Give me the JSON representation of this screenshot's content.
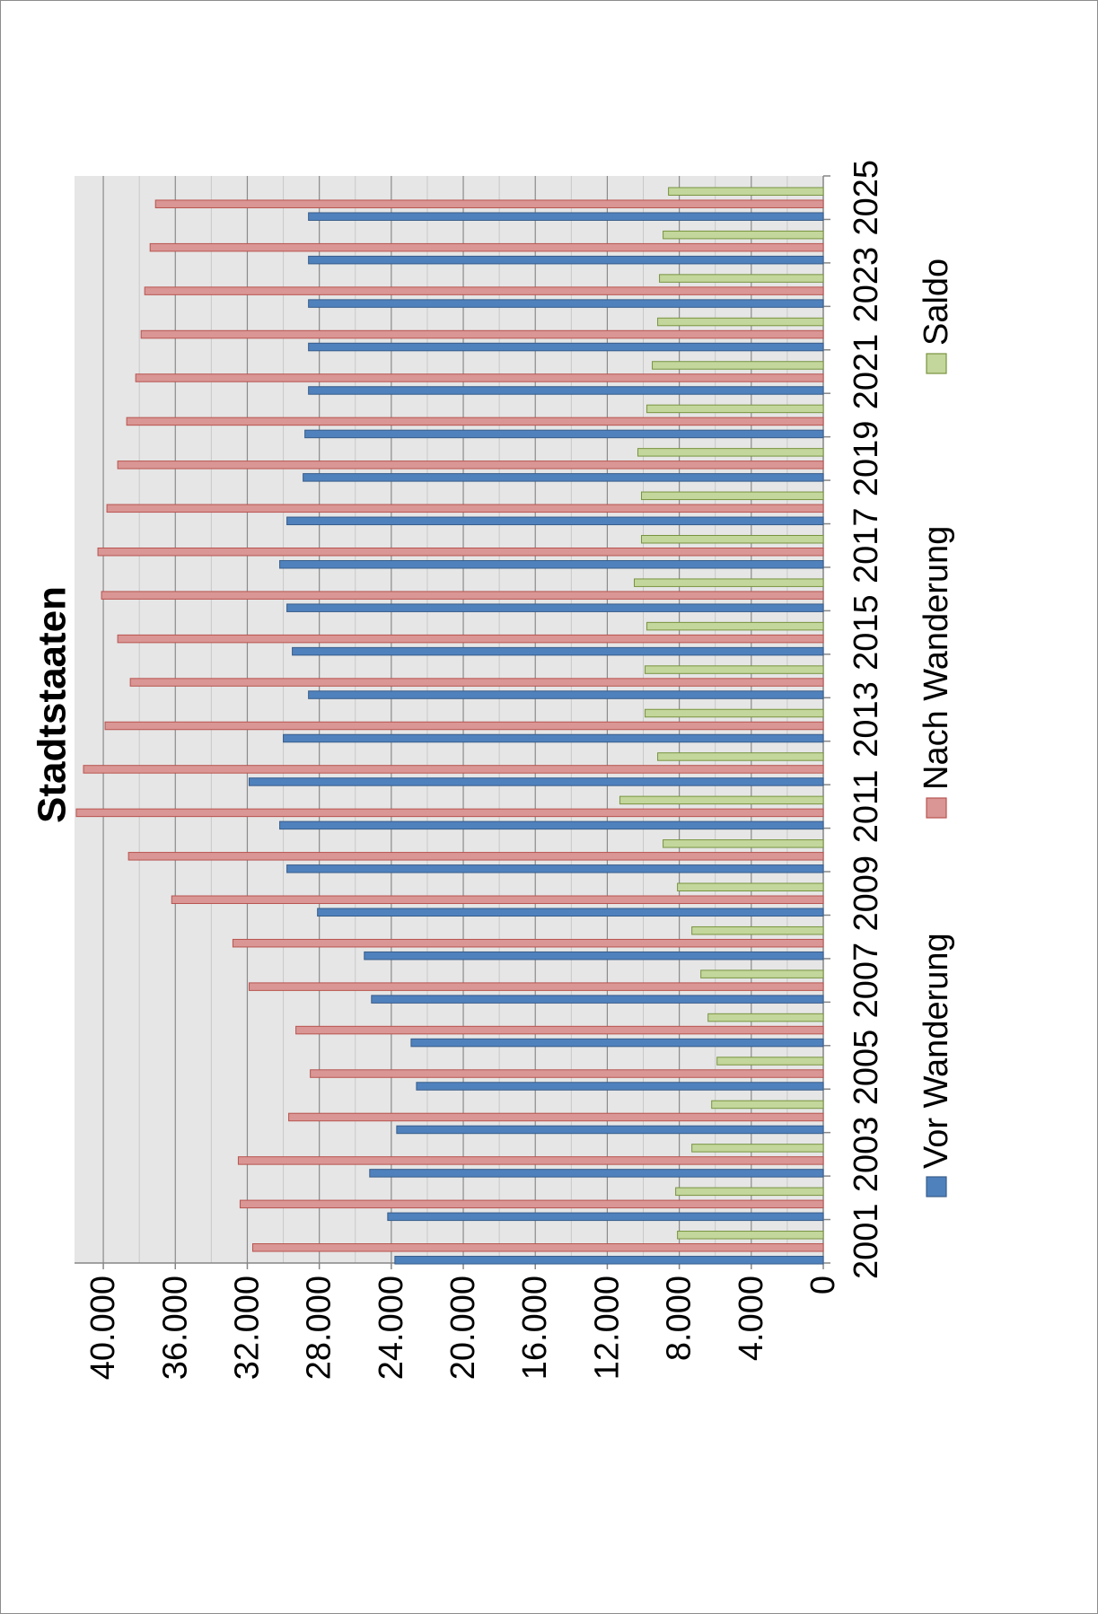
{
  "chart_data": {
    "type": "bar",
    "orientation": "vertical-rotated",
    "title": "Stadtstaaten",
    "xlabel": "",
    "ylabel": "",
    "ylim": [
      0,
      41600
    ],
    "ytick_values": [
      0,
      4000,
      8000,
      12000,
      16000,
      20000,
      24000,
      28000,
      32000,
      36000,
      40000
    ],
    "ytick_labels": [
      "0",
      "4.000",
      "8.000",
      "12.000",
      "16.000",
      "20.000",
      "24.000",
      "28.000",
      "32.000",
      "36.000",
      "40.000"
    ],
    "grid": true,
    "categories": [
      "2001",
      "2002",
      "2003",
      "2004",
      "2005",
      "2006",
      "2007",
      "2008",
      "2009",
      "2010",
      "2011",
      "2012",
      "2013",
      "2014",
      "2015",
      "2016",
      "2017",
      "2018",
      "2019",
      "2020",
      "2021",
      "2022",
      "2023",
      "2024",
      "2025"
    ],
    "category_tick_labels": [
      "2001",
      "2003",
      "2005",
      "2007",
      "2009",
      "2011",
      "2013",
      "2015",
      "2017",
      "2019",
      "2021",
      "2023",
      "2025"
    ],
    "legend_position": "bottom",
    "series": [
      {
        "name": "Vor Wanderung",
        "color": "#4f81bd",
        "values": [
          23800,
          24200,
          25200,
          23700,
          22600,
          22900,
          25100,
          25500,
          28100,
          29800,
          30200,
          31900,
          30000,
          28600,
          29500,
          29800,
          30200,
          29800,
          28900,
          28800,
          28600,
          28600,
          28600,
          28600,
          28600
        ]
      },
      {
        "name": "Nach Wanderung",
        "color": "#d99694",
        "values": [
          31700,
          32400,
          32500,
          29700,
          28500,
          29300,
          31900,
          32800,
          36200,
          38600,
          41500,
          41100,
          39900,
          38500,
          39200,
          40100,
          40300,
          39800,
          39200,
          38700,
          38200,
          37900,
          37700,
          37400,
          37100
        ]
      },
      {
        "name": "Saldo",
        "color": "#c3d69b",
        "values": [
          8100,
          8200,
          7300,
          6200,
          5900,
          6400,
          6800,
          7300,
          8100,
          8900,
          11300,
          9200,
          9900,
          9900,
          9800,
          10500,
          10100,
          10100,
          10300,
          9800,
          9500,
          9200,
          9100,
          8900,
          8600
        ]
      }
    ]
  }
}
